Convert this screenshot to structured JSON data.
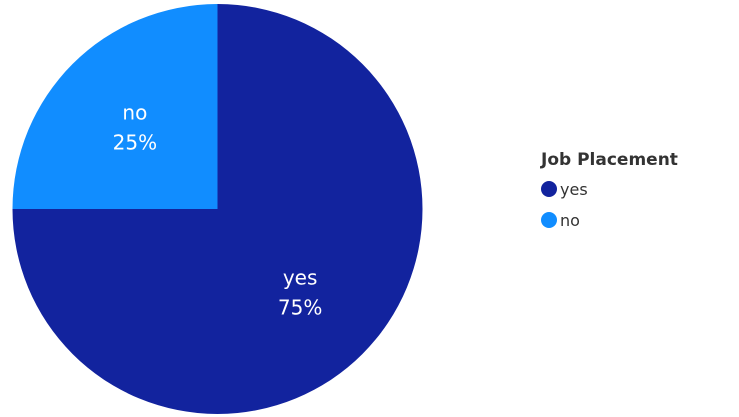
{
  "chart_data": {
    "type": "pie",
    "legend_title": "Job Placement",
    "legend_position": "right",
    "categories": [
      "yes",
      "no"
    ],
    "values": [
      75,
      25
    ],
    "value_labels": [
      "75%",
      "25%"
    ],
    "colors": [
      "#12239E",
      "#118DFF"
    ]
  }
}
